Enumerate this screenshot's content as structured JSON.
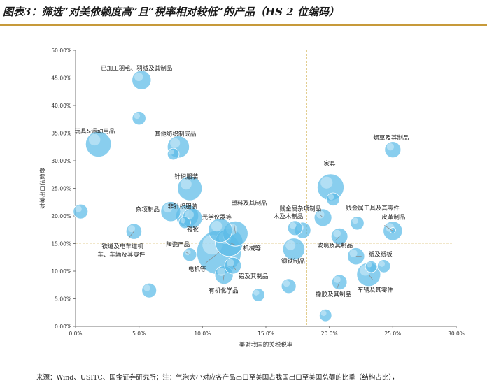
{
  "title": "图表3：筛选“对美依赖度高”且“税率相对较低”的产品（HS 2 位编码）",
  "footer": "来源：Wind、USITC、国金证券研究所；注：气泡大小对应各产品出口至美国占我国出口至美国总额的比重（结构占比），",
  "colors": {
    "bubble": "#5bbbe8",
    "bubble_light": "#a7dcf4",
    "reference_line": "#c8a02a",
    "title_rule": "#c79a3a"
  },
  "chart_data": {
    "type": "scatter",
    "xlabel": "美对我国的关税税率",
    "ylabel": "对美出口依赖度",
    "xlim": [
      0,
      30
    ],
    "ylim": [
      0,
      50
    ],
    "x_ticks": [
      "0.0%",
      "5.0%",
      "10.0%",
      "15.0%",
      "20.0%",
      "25.0%",
      "30.0%"
    ],
    "y_ticks": [
      "0.00%",
      "5.00%",
      "10.00%",
      "15.00%",
      "20.00%",
      "25.00%",
      "30.00%",
      "35.00%",
      "40.00%",
      "45.00%",
      "50.00%"
    ],
    "reference_lines": {
      "x": 18.2,
      "y": 15.1
    },
    "points": [
      {
        "x": 5.2,
        "y": 44.6,
        "size": 2.2,
        "label": "已加工羽毛、羽绒及其制品"
      },
      {
        "x": 5.0,
        "y": 37.7,
        "size": 1.0,
        "label": ""
      },
      {
        "x": 1.8,
        "y": 33.0,
        "size": 4.2,
        "label": "玩具&运动用品"
      },
      {
        "x": 8.1,
        "y": 32.5,
        "size": 3.0,
        "label": "其他纺织制成品"
      },
      {
        "x": 7.7,
        "y": 31.2,
        "size": 0.7,
        "label": ""
      },
      {
        "x": 25.0,
        "y": 32.0,
        "size": 1.5,
        "label": "烟草及其制品"
      },
      {
        "x": 9.0,
        "y": 25.0,
        "size": 3.8,
        "label": "针织服装"
      },
      {
        "x": 20.1,
        "y": 25.2,
        "size": 4.6,
        "label": "家具"
      },
      {
        "x": 20.3,
        "y": 23.0,
        "size": 0.9,
        "label": ""
      },
      {
        "x": 0.4,
        "y": 20.8,
        "size": 1.2,
        "label": ""
      },
      {
        "x": 7.5,
        "y": 20.8,
        "size": 2.4,
        "label": "杂项制品"
      },
      {
        "x": 8.8,
        "y": 20.0,
        "size": 3.2,
        "label": "非针织服装"
      },
      {
        "x": 9.2,
        "y": 19.6,
        "size": 2.4,
        "label": "鞋靴"
      },
      {
        "x": 11.4,
        "y": 17.4,
        "size": 3.6,
        "label": "光学仪器等"
      },
      {
        "x": 12.6,
        "y": 16.8,
        "size": 4.0,
        "label": "塑料及其制品"
      },
      {
        "x": 11.3,
        "y": 13.4,
        "size": 13.5,
        "label": "电机等"
      },
      {
        "x": 12.1,
        "y": 15.2,
        "size": 5.0,
        "label": "机械等"
      },
      {
        "x": 19.5,
        "y": 19.7,
        "size": 1.8,
        "label": "贱金属杂项制品"
      },
      {
        "x": 17.3,
        "y": 17.8,
        "size": 1.2,
        "label": "木及木制品"
      },
      {
        "x": 17.9,
        "y": 17.4,
        "size": 1.5,
        "label": ""
      },
      {
        "x": 22.2,
        "y": 18.7,
        "size": 1.0,
        "label": ""
      },
      {
        "x": 25.0,
        "y": 17.3,
        "size": 2.2,
        "label": "贱金属工具及其零件"
      },
      {
        "x": 25.0,
        "y": 17.4,
        "size": 0.1,
        "label": "皮革制品"
      },
      {
        "x": 20.8,
        "y": 16.3,
        "size": 1.6,
        "label": "玻璃及其制品"
      },
      {
        "x": 17.2,
        "y": 14.0,
        "size": 3.0,
        "label": "钢铁制品"
      },
      {
        "x": 22.1,
        "y": 12.7,
        "size": 1.7,
        "label": "纸及纸板"
      },
      {
        "x": 23.3,
        "y": 10.8,
        "size": 0.7,
        "label": ""
      },
      {
        "x": 24.3,
        "y": 10.9,
        "size": 0.9,
        "label": ""
      },
      {
        "x": 23.1,
        "y": 9.4,
        "size": 3.6,
        "label": "车辆及其零件"
      },
      {
        "x": 20.8,
        "y": 8.0,
        "size": 1.3,
        "label": "橡胶及其制品"
      },
      {
        "x": 19.7,
        "y": 2.0,
        "size": 0.8,
        "label": ""
      },
      {
        "x": 8.6,
        "y": 18.8,
        "size": 0.7,
        "label": ""
      },
      {
        "x": 4.6,
        "y": 17.2,
        "size": 1.4,
        "label": "铁道及电车道机车、车辆及其零件"
      },
      {
        "x": 9.0,
        "y": 13.0,
        "size": 1.0,
        "label": "陶瓷产品"
      },
      {
        "x": 12.4,
        "y": 11.0,
        "size": 1.6,
        "label": "铝及其制品"
      },
      {
        "x": 11.7,
        "y": 9.3,
        "size": 2.0,
        "label": "有机化学品"
      },
      {
        "x": 16.8,
        "y": 7.3,
        "size": 1.2,
        "label": ""
      },
      {
        "x": 14.4,
        "y": 5.7,
        "size": 0.9,
        "label": ""
      },
      {
        "x": 5.8,
        "y": 6.5,
        "size": 1.2,
        "label": ""
      }
    ]
  }
}
